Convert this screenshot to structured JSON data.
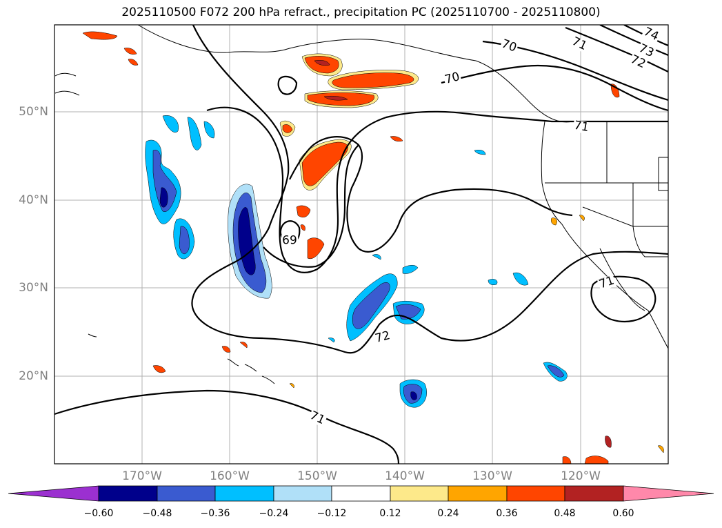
{
  "title": "2025110500 F072 200 hPa refract., precipitation PC (2025110700 - 2025110800)",
  "lat_labels": [
    "50°N",
    "40°N",
    "30°N",
    "20°N"
  ],
  "lon_labels": [
    "170°W",
    "160°W",
    "150°W",
    "140°W",
    "130°W",
    "120°W"
  ],
  "contour_labels": [
    "69",
    "70",
    "70",
    "71",
    "71",
    "71",
    "71",
    "72",
    "72",
    "73",
    "74"
  ],
  "colorbar": {
    "ticks": [
      "−0.60",
      "−0.48",
      "−0.36",
      "−0.24",
      "−0.12",
      "0.12",
      "0.24",
      "0.36",
      "0.48",
      "0.60"
    ],
    "colors": [
      "#9b30d0",
      "#00008b",
      "#3a5bd0",
      "#00bfff",
      "#b0e0f8",
      "#ffffff",
      "#fde98a",
      "#ffa500",
      "#ff4500",
      "#b22222",
      "#ff88aa"
    ]
  }
}
